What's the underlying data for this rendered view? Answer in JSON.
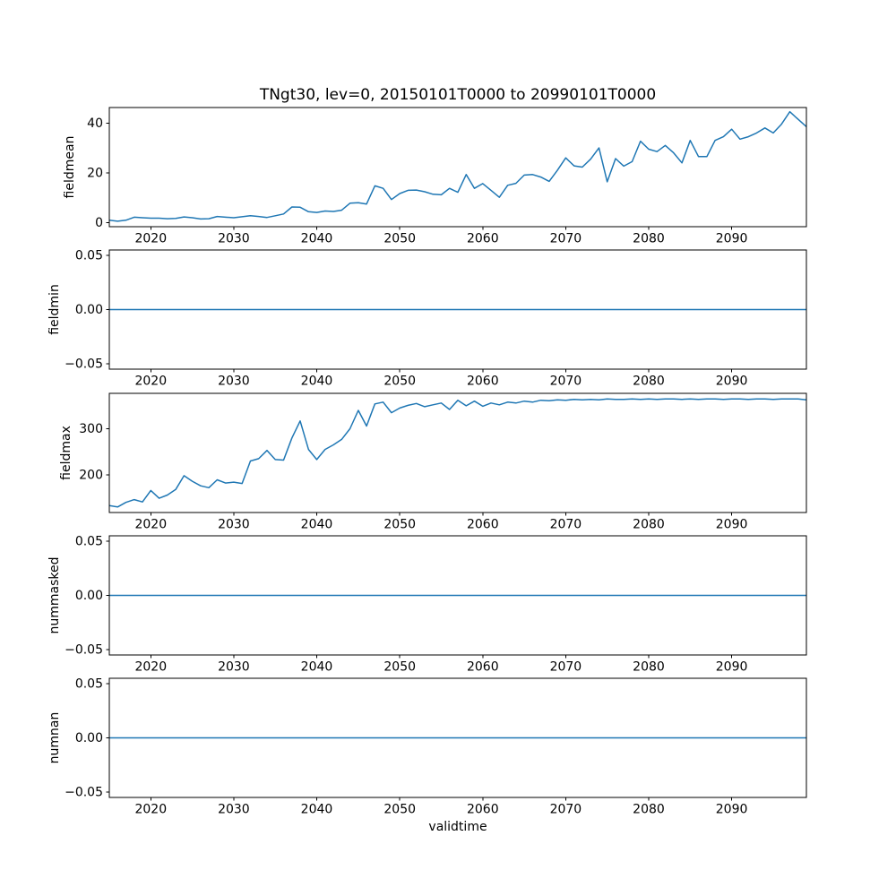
{
  "figure": {
    "title": "TNgt30, lev=0, 20150101T0000 to 20990101T0000",
    "xlabel": "validtime",
    "line_color": "#1f77b4",
    "text_color": "#000000",
    "background": "#ffffff"
  },
  "chart_data": [
    {
      "type": "line",
      "ylabel": "fieldmean",
      "x_range": [
        2015,
        2099
      ],
      "x_step": 1,
      "values": [
        1.0,
        0.6,
        1.0,
        2.2,
        2.0,
        1.8,
        1.8,
        1.6,
        1.7,
        2.3,
        2.0,
        1.5,
        1.6,
        2.5,
        2.2,
        2.0,
        2.4,
        2.8,
        2.5,
        2.1,
        2.8,
        3.5,
        6.3,
        6.2,
        4.4,
        4.1,
        4.7,
        4.5,
        5.0,
        7.8,
        8.0,
        7.5,
        14.8,
        13.8,
        9.3,
        11.7,
        13.0,
        13.1,
        12.4,
        11.4,
        11.2,
        13.8,
        12.2,
        19.3,
        13.8,
        15.7,
        13.0,
        10.2,
        15.0,
        15.8,
        19.1,
        19.3,
        18.3,
        16.6,
        21.0,
        26.0,
        22.8,
        22.3,
        25.5,
        30.0,
        16.4,
        25.7,
        22.7,
        24.5,
        32.7,
        29.5,
        28.5,
        31.0,
        28.0,
        24.0,
        33.0,
        26.5,
        26.5,
        33.0,
        34.5,
        37.5,
        33.5,
        34.5,
        36.0,
        38.0,
        36.0,
        39.5,
        44.5,
        41.5,
        38.5
      ],
      "ylim": [
        -1.6,
        46.2
      ],
      "ytick_values": [
        0,
        20,
        40
      ],
      "ytick_labels": [
        "0",
        "20",
        "40"
      ],
      "xticks": [
        2020,
        2030,
        2040,
        2050,
        2060,
        2070,
        2080,
        2090
      ],
      "grid": false,
      "legend": "none"
    },
    {
      "type": "line",
      "ylabel": "fieldmin",
      "x_range": [
        2015,
        2099
      ],
      "x_step": 1,
      "constant_value": 0,
      "ylim": [
        -0.055,
        0.055
      ],
      "ytick_values": [
        -0.05,
        0.0,
        0.05
      ],
      "ytick_labels": [
        "−0.05",
        "0.00",
        "0.05"
      ],
      "xticks": [
        2020,
        2030,
        2040,
        2050,
        2060,
        2070,
        2080,
        2090
      ],
      "grid": false,
      "legend": "none"
    },
    {
      "type": "line",
      "ylabel": "fieldmax",
      "x_range": [
        2015,
        2099
      ],
      "x_step": 1,
      "values": [
        133,
        130,
        140,
        146,
        141,
        166,
        149,
        156,
        168,
        198,
        186,
        176,
        172,
        189,
        182,
        184,
        181,
        230,
        235,
        253,
        233,
        232,
        280,
        317,
        255,
        233,
        255,
        265,
        277,
        300,
        340,
        306,
        354,
        358,
        335,
        345,
        351,
        355,
        348,
        352,
        356,
        342,
        362,
        350,
        360,
        349,
        356,
        352,
        358,
        356,
        360,
        358,
        362,
        361,
        363,
        362,
        364,
        363,
        364,
        363,
        365,
        364,
        364,
        365,
        364,
        365,
        364,
        365,
        365,
        364,
        365,
        364,
        365,
        365,
        364,
        365,
        365,
        364,
        365,
        365,
        364,
        365,
        365,
        365,
        363
      ],
      "ylim": [
        118,
        377
      ],
      "ytick_values": [
        200,
        300
      ],
      "ytick_labels": [
        "200",
        "300"
      ],
      "xticks": [
        2020,
        2030,
        2040,
        2050,
        2060,
        2070,
        2080,
        2090
      ],
      "grid": false,
      "legend": "none"
    },
    {
      "type": "line",
      "ylabel": "nummasked",
      "x_range": [
        2015,
        2099
      ],
      "x_step": 1,
      "constant_value": 0,
      "ylim": [
        -0.055,
        0.055
      ],
      "ytick_values": [
        -0.05,
        0.0,
        0.05
      ],
      "ytick_labels": [
        "−0.05",
        "0.00",
        "0.05"
      ],
      "xticks": [
        2020,
        2030,
        2040,
        2050,
        2060,
        2070,
        2080,
        2090
      ],
      "grid": false,
      "legend": "none"
    },
    {
      "type": "line",
      "ylabel": "numnan",
      "x_range": [
        2015,
        2099
      ],
      "x_step": 1,
      "constant_value": 0,
      "ylim": [
        -0.055,
        0.055
      ],
      "ytick_values": [
        -0.05,
        0.0,
        0.05
      ],
      "ytick_labels": [
        "−0.05",
        "0.00",
        "0.05"
      ],
      "xticks": [
        2020,
        2030,
        2040,
        2050,
        2060,
        2070,
        2080,
        2090
      ],
      "grid": false,
      "legend": "none"
    }
  ]
}
